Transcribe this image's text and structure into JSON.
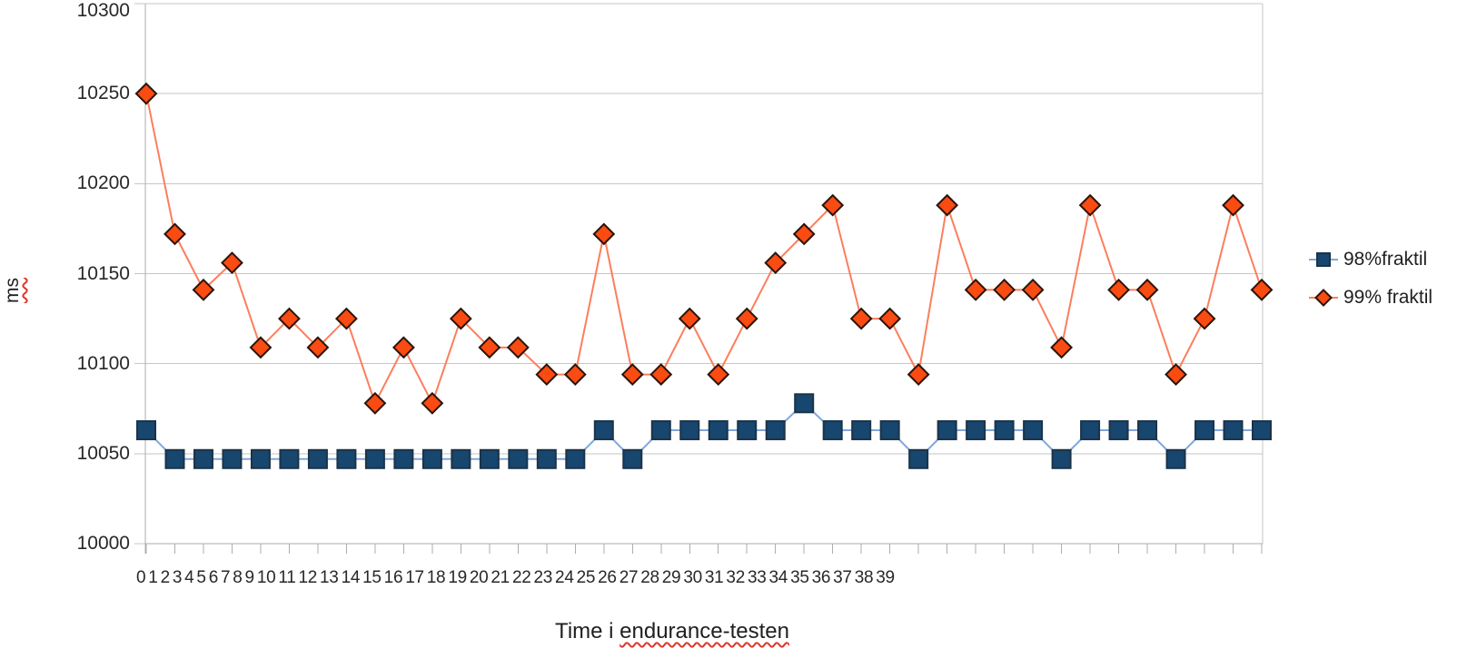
{
  "chart_data": {
    "type": "line",
    "title": "",
    "xlabel": "Time i endurance-testen",
    "xlabel_display": {
      "plain": "Time i ",
      "underlined": "endurance-testen"
    },
    "ylabel": "ms",
    "ylim": [
      10000,
      10300
    ],
    "yticks": [
      10300,
      10250,
      10200,
      10150,
      10100,
      10050,
      10000
    ],
    "grid": true,
    "legend_position": "right",
    "categories": [
      "0",
      "1",
      "2",
      "3",
      "4",
      "5",
      "6",
      "7",
      "8",
      "9",
      "10",
      "11",
      "12",
      "13",
      "14",
      "15",
      "16",
      "17",
      "18",
      "19",
      "20",
      "21",
      "22",
      "23",
      "24",
      "25",
      "26",
      "27",
      "28",
      "29",
      "30",
      "31",
      "32",
      "33",
      "34",
      "35",
      "36",
      "37",
      "38",
      "39"
    ],
    "series": [
      {
        "name": "98%fraktil",
        "marker": "square",
        "color": "#17466F",
        "marker_border": "#1C3347",
        "line_color": "#7FA8DC",
        "values": [
          10063,
          10047,
          10047,
          10047,
          10047,
          10047,
          10047,
          10047,
          10047,
          10047,
          10047,
          10047,
          10047,
          10047,
          10047,
          10047,
          10063,
          10047,
          10063,
          10063,
          10063,
          10063,
          10063,
          10078,
          10063,
          10063,
          10063,
          10047,
          10063,
          10063,
          10063,
          10063,
          10047,
          10063,
          10063,
          10063,
          10047,
          10063,
          10063,
          10063
        ]
      },
      {
        "name": "99% fraktil",
        "marker": "diamond",
        "color": "#F94B12",
        "marker_border": "#2A140A",
        "line_color": "#FC7E5D",
        "values": [
          10250,
          10172,
          10141,
          10156,
          10109,
          10125,
          10109,
          10125,
          10078,
          10109,
          10078,
          10125,
          10109,
          10109,
          10094,
          10094,
          10172,
          10094,
          10094,
          10125,
          10094,
          10125,
          10156,
          10172,
          10188,
          10125,
          10125,
          10094,
          10188,
          10141,
          10141,
          10141,
          10109,
          10188,
          10141,
          10141,
          10094,
          10125,
          10188,
          10141
        ]
      }
    ],
    "colors": {
      "gridline": "#C6C6C6",
      "axis": "#ADADAD",
      "tick_text": "#282828",
      "spellcheck_squiggle": "#E0382B",
      "background": "#FFFFFF"
    }
  }
}
